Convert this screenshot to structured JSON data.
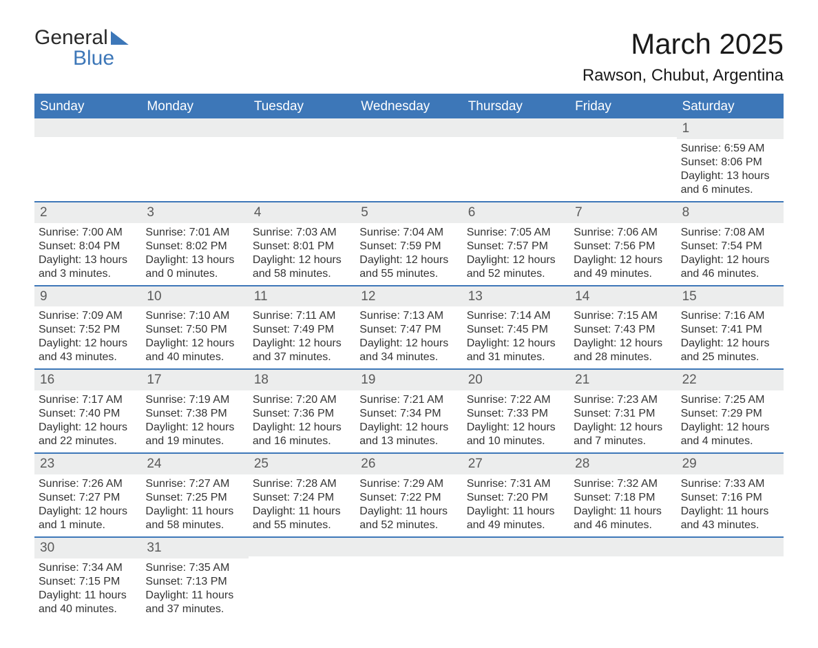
{
  "logo": {
    "line1": "General",
    "line2": "Blue"
  },
  "title": {
    "month": "March 2025",
    "location": "Rawson, Chubut, Argentina"
  },
  "colors": {
    "header_bg": "#3d77b8",
    "header_text": "#ffffff",
    "daynum_bg": "#eceded",
    "daynum_text": "#5a5a5a",
    "body_text": "#333333",
    "border": "#3d77b8"
  },
  "weekdays": [
    "Sunday",
    "Monday",
    "Tuesday",
    "Wednesday",
    "Thursday",
    "Friday",
    "Saturday"
  ],
  "weeks": [
    [
      {
        "day": ""
      },
      {
        "day": ""
      },
      {
        "day": ""
      },
      {
        "day": ""
      },
      {
        "day": ""
      },
      {
        "day": ""
      },
      {
        "day": "1",
        "sunrise": "Sunrise: 6:59 AM",
        "sunset": "Sunset: 8:06 PM",
        "dl1": "Daylight: 13 hours",
        "dl2": "and 6 minutes."
      }
    ],
    [
      {
        "day": "2",
        "sunrise": "Sunrise: 7:00 AM",
        "sunset": "Sunset: 8:04 PM",
        "dl1": "Daylight: 13 hours",
        "dl2": "and 3 minutes."
      },
      {
        "day": "3",
        "sunrise": "Sunrise: 7:01 AM",
        "sunset": "Sunset: 8:02 PM",
        "dl1": "Daylight: 13 hours",
        "dl2": "and 0 minutes."
      },
      {
        "day": "4",
        "sunrise": "Sunrise: 7:03 AM",
        "sunset": "Sunset: 8:01 PM",
        "dl1": "Daylight: 12 hours",
        "dl2": "and 58 minutes."
      },
      {
        "day": "5",
        "sunrise": "Sunrise: 7:04 AM",
        "sunset": "Sunset: 7:59 PM",
        "dl1": "Daylight: 12 hours",
        "dl2": "and 55 minutes."
      },
      {
        "day": "6",
        "sunrise": "Sunrise: 7:05 AM",
        "sunset": "Sunset: 7:57 PM",
        "dl1": "Daylight: 12 hours",
        "dl2": "and 52 minutes."
      },
      {
        "day": "7",
        "sunrise": "Sunrise: 7:06 AM",
        "sunset": "Sunset: 7:56 PM",
        "dl1": "Daylight: 12 hours",
        "dl2": "and 49 minutes."
      },
      {
        "day": "8",
        "sunrise": "Sunrise: 7:08 AM",
        "sunset": "Sunset: 7:54 PM",
        "dl1": "Daylight: 12 hours",
        "dl2": "and 46 minutes."
      }
    ],
    [
      {
        "day": "9",
        "sunrise": "Sunrise: 7:09 AM",
        "sunset": "Sunset: 7:52 PM",
        "dl1": "Daylight: 12 hours",
        "dl2": "and 43 minutes."
      },
      {
        "day": "10",
        "sunrise": "Sunrise: 7:10 AM",
        "sunset": "Sunset: 7:50 PM",
        "dl1": "Daylight: 12 hours",
        "dl2": "and 40 minutes."
      },
      {
        "day": "11",
        "sunrise": "Sunrise: 7:11 AM",
        "sunset": "Sunset: 7:49 PM",
        "dl1": "Daylight: 12 hours",
        "dl2": "and 37 minutes."
      },
      {
        "day": "12",
        "sunrise": "Sunrise: 7:13 AM",
        "sunset": "Sunset: 7:47 PM",
        "dl1": "Daylight: 12 hours",
        "dl2": "and 34 minutes."
      },
      {
        "day": "13",
        "sunrise": "Sunrise: 7:14 AM",
        "sunset": "Sunset: 7:45 PM",
        "dl1": "Daylight: 12 hours",
        "dl2": "and 31 minutes."
      },
      {
        "day": "14",
        "sunrise": "Sunrise: 7:15 AM",
        "sunset": "Sunset: 7:43 PM",
        "dl1": "Daylight: 12 hours",
        "dl2": "and 28 minutes."
      },
      {
        "day": "15",
        "sunrise": "Sunrise: 7:16 AM",
        "sunset": "Sunset: 7:41 PM",
        "dl1": "Daylight: 12 hours",
        "dl2": "and 25 minutes."
      }
    ],
    [
      {
        "day": "16",
        "sunrise": "Sunrise: 7:17 AM",
        "sunset": "Sunset: 7:40 PM",
        "dl1": "Daylight: 12 hours",
        "dl2": "and 22 minutes."
      },
      {
        "day": "17",
        "sunrise": "Sunrise: 7:19 AM",
        "sunset": "Sunset: 7:38 PM",
        "dl1": "Daylight: 12 hours",
        "dl2": "and 19 minutes."
      },
      {
        "day": "18",
        "sunrise": "Sunrise: 7:20 AM",
        "sunset": "Sunset: 7:36 PM",
        "dl1": "Daylight: 12 hours",
        "dl2": "and 16 minutes."
      },
      {
        "day": "19",
        "sunrise": "Sunrise: 7:21 AM",
        "sunset": "Sunset: 7:34 PM",
        "dl1": "Daylight: 12 hours",
        "dl2": "and 13 minutes."
      },
      {
        "day": "20",
        "sunrise": "Sunrise: 7:22 AM",
        "sunset": "Sunset: 7:33 PM",
        "dl1": "Daylight: 12 hours",
        "dl2": "and 10 minutes."
      },
      {
        "day": "21",
        "sunrise": "Sunrise: 7:23 AM",
        "sunset": "Sunset: 7:31 PM",
        "dl1": "Daylight: 12 hours",
        "dl2": "and 7 minutes."
      },
      {
        "day": "22",
        "sunrise": "Sunrise: 7:25 AM",
        "sunset": "Sunset: 7:29 PM",
        "dl1": "Daylight: 12 hours",
        "dl2": "and 4 minutes."
      }
    ],
    [
      {
        "day": "23",
        "sunrise": "Sunrise: 7:26 AM",
        "sunset": "Sunset: 7:27 PM",
        "dl1": "Daylight: 12 hours",
        "dl2": "and 1 minute."
      },
      {
        "day": "24",
        "sunrise": "Sunrise: 7:27 AM",
        "sunset": "Sunset: 7:25 PM",
        "dl1": "Daylight: 11 hours",
        "dl2": "and 58 minutes."
      },
      {
        "day": "25",
        "sunrise": "Sunrise: 7:28 AM",
        "sunset": "Sunset: 7:24 PM",
        "dl1": "Daylight: 11 hours",
        "dl2": "and 55 minutes."
      },
      {
        "day": "26",
        "sunrise": "Sunrise: 7:29 AM",
        "sunset": "Sunset: 7:22 PM",
        "dl1": "Daylight: 11 hours",
        "dl2": "and 52 minutes."
      },
      {
        "day": "27",
        "sunrise": "Sunrise: 7:31 AM",
        "sunset": "Sunset: 7:20 PM",
        "dl1": "Daylight: 11 hours",
        "dl2": "and 49 minutes."
      },
      {
        "day": "28",
        "sunrise": "Sunrise: 7:32 AM",
        "sunset": "Sunset: 7:18 PM",
        "dl1": "Daylight: 11 hours",
        "dl2": "and 46 minutes."
      },
      {
        "day": "29",
        "sunrise": "Sunrise: 7:33 AM",
        "sunset": "Sunset: 7:16 PM",
        "dl1": "Daylight: 11 hours",
        "dl2": "and 43 minutes."
      }
    ],
    [
      {
        "day": "30",
        "sunrise": "Sunrise: 7:34 AM",
        "sunset": "Sunset: 7:15 PM",
        "dl1": "Daylight: 11 hours",
        "dl2": "and 40 minutes."
      },
      {
        "day": "31",
        "sunrise": "Sunrise: 7:35 AM",
        "sunset": "Sunset: 7:13 PM",
        "dl1": "Daylight: 11 hours",
        "dl2": "and 37 minutes."
      },
      {
        "day": ""
      },
      {
        "day": ""
      },
      {
        "day": ""
      },
      {
        "day": ""
      },
      {
        "day": ""
      }
    ]
  ]
}
